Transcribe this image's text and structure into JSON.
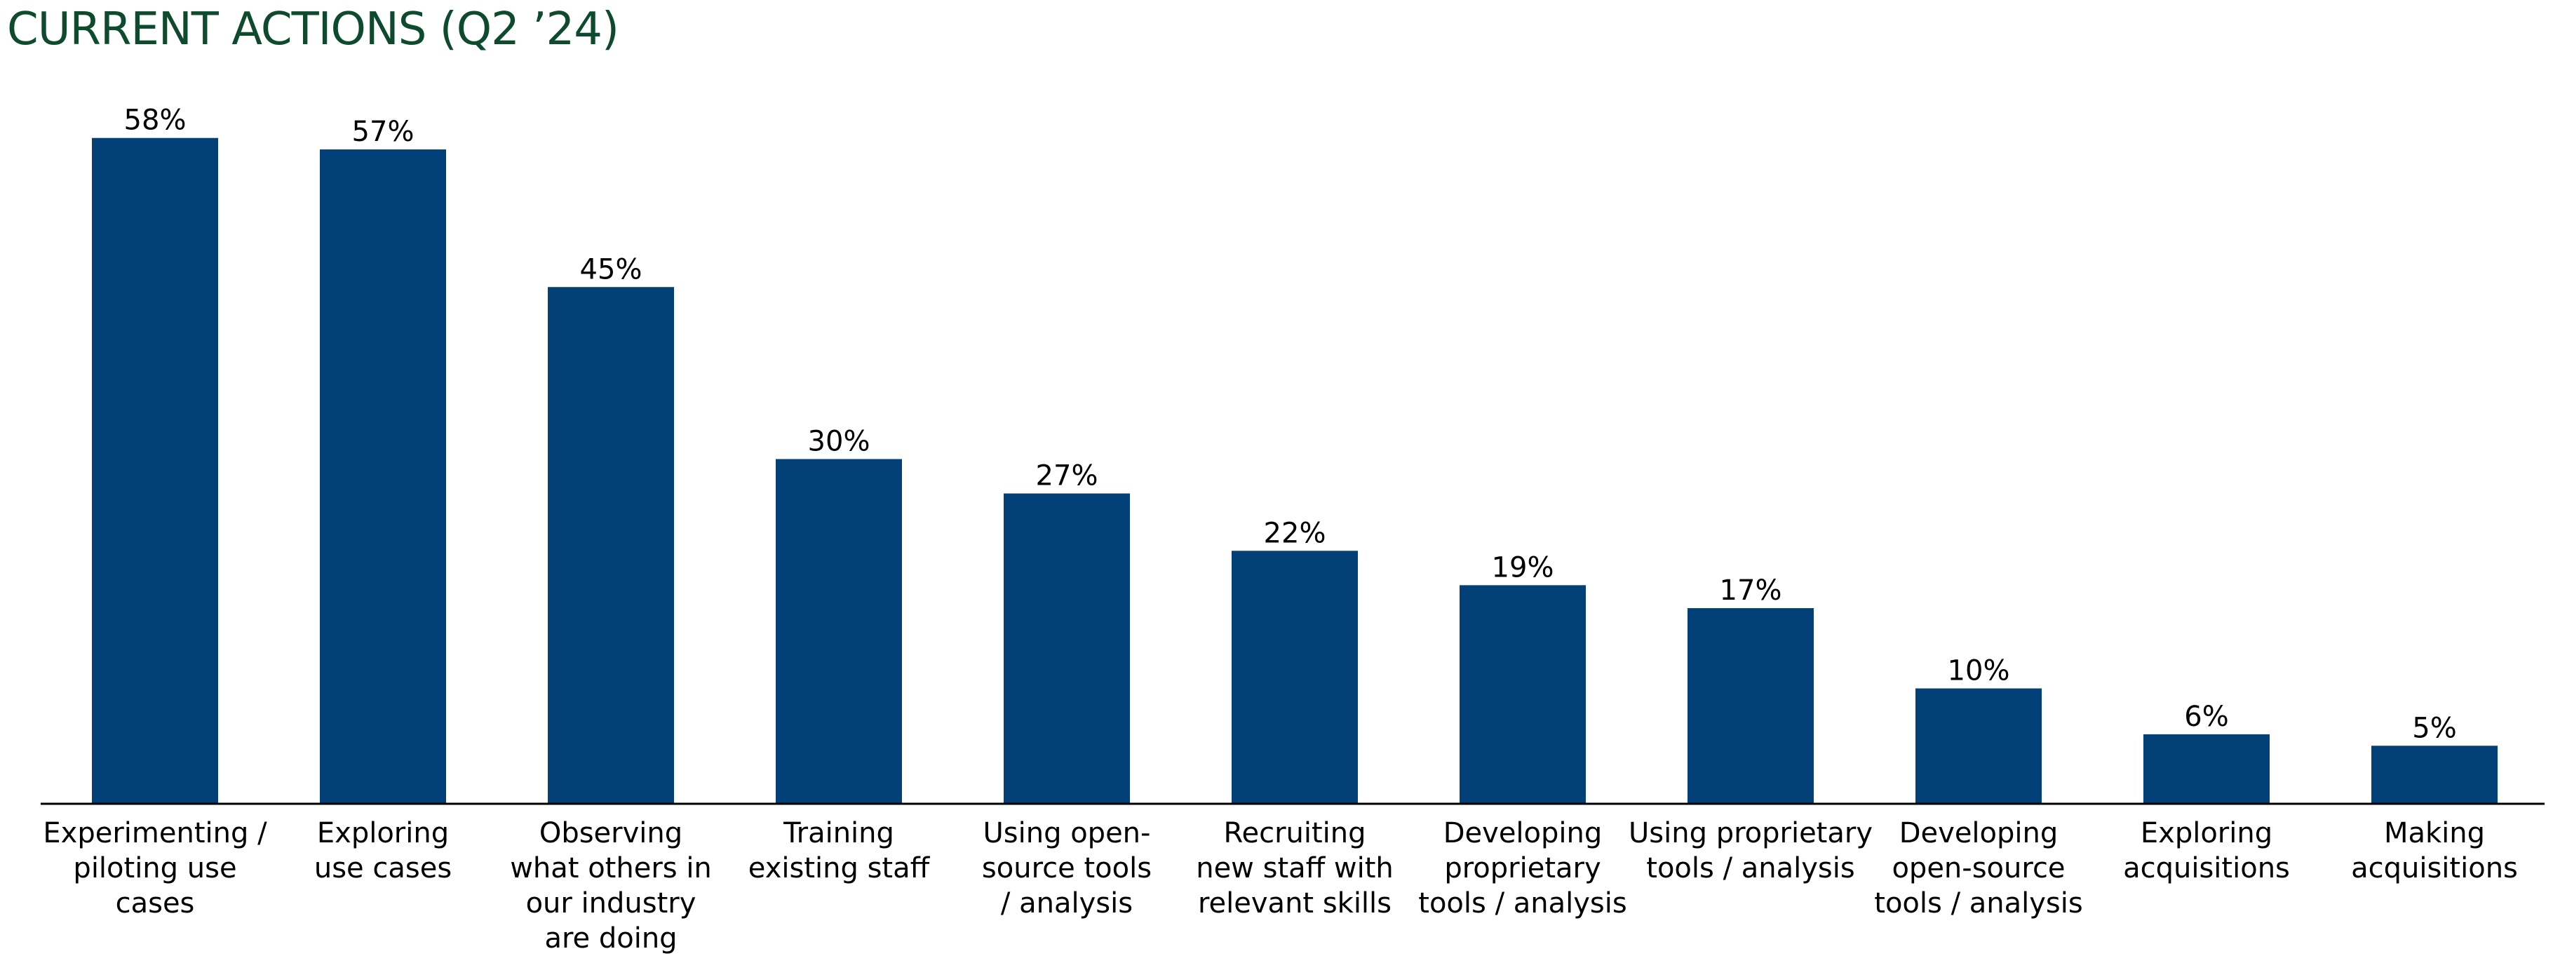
{
  "title": "CURRENT ACTIONS (Q2 ’24)",
  "colors": {
    "title": "#0d4a2e",
    "bar": "#034078",
    "axis": "#000000"
  },
  "chart_data": {
    "type": "bar",
    "title": "CURRENT ACTIONS (Q2 ’24)",
    "xlabel": "",
    "ylabel": "",
    "ylim": [
      0,
      60
    ],
    "grid": false,
    "legend": "none",
    "categories": [
      [
        "Experimenting /",
        "piloting use",
        "cases"
      ],
      [
        "Exploring",
        "use cases"
      ],
      [
        "Observing",
        "what others in",
        "our industry",
        "are doing"
      ],
      [
        "Training",
        "existing staff"
      ],
      [
        "Using open-",
        "source tools",
        "/ analysis"
      ],
      [
        "Recruiting",
        "new staff with",
        "relevant skills"
      ],
      [
        "Developing",
        "proprietary",
        "tools / analysis"
      ],
      [
        "Using proprietary",
        "tools / analysis"
      ],
      [
        "Developing",
        "open-source",
        "tools / analysis"
      ],
      [
        "Exploring",
        "acquisitions"
      ],
      [
        "Making",
        "acquisitions"
      ]
    ],
    "values": [
      58,
      57,
      45,
      30,
      27,
      22,
      19,
      17,
      10,
      6,
      5
    ],
    "data_labels": [
      "58%",
      "57%",
      "45%",
      "30%",
      "27%",
      "22%",
      "19%",
      "17%",
      "10%",
      "6%",
      "5%"
    ]
  }
}
